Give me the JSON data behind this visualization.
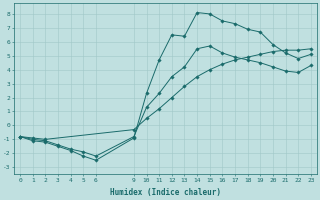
{
  "title": "",
  "xlabel": "Humidex (Indice chaleur)",
  "ylabel": "",
  "bg_color": "#c0e0e0",
  "grid_color": "#a0c8c8",
  "line_color": "#1a6b6b",
  "xlim": [
    -0.5,
    23.5
  ],
  "ylim": [
    -3.5,
    8.8
  ],
  "xticks": [
    0,
    1,
    2,
    3,
    4,
    5,
    6,
    9,
    10,
    11,
    12,
    13,
    14,
    15,
    16,
    17,
    18,
    19,
    20,
    21,
    22,
    23
  ],
  "yticks": [
    -3,
    -2,
    -1,
    0,
    1,
    2,
    3,
    4,
    5,
    6,
    7,
    8
  ],
  "line1_x": [
    0,
    1,
    2,
    3,
    4,
    5,
    6,
    9,
    10,
    11,
    12,
    13,
    14,
    15,
    16,
    17,
    18,
    19,
    20,
    21,
    22,
    23
  ],
  "line1_y": [
    -0.8,
    -1.1,
    -1.2,
    -1.5,
    -1.8,
    -2.2,
    -2.5,
    -0.9,
    2.3,
    4.7,
    6.5,
    6.4,
    8.1,
    8.0,
    7.5,
    7.3,
    6.9,
    6.7,
    5.8,
    5.2,
    4.8,
    5.1
  ],
  "line2_x": [
    0,
    1,
    2,
    3,
    4,
    5,
    6,
    9,
    10,
    11,
    12,
    13,
    14,
    15,
    16,
    17,
    18,
    19,
    20,
    21,
    22,
    23
  ],
  "line2_y": [
    -0.8,
    -1.0,
    -1.1,
    -1.4,
    -1.7,
    -1.9,
    -2.2,
    -0.8,
    1.3,
    2.3,
    3.5,
    4.2,
    5.5,
    5.7,
    5.2,
    4.9,
    4.7,
    4.5,
    4.2,
    3.9,
    3.8,
    4.3
  ],
  "line3_x": [
    0,
    1,
    2,
    9,
    10,
    11,
    12,
    13,
    14,
    15,
    16,
    17,
    18,
    19,
    20,
    21,
    22,
    23
  ],
  "line3_y": [
    -0.8,
    -0.9,
    -1.0,
    -0.3,
    0.5,
    1.2,
    2.0,
    2.8,
    3.5,
    4.0,
    4.4,
    4.7,
    4.9,
    5.1,
    5.3,
    5.4,
    5.4,
    5.5
  ]
}
